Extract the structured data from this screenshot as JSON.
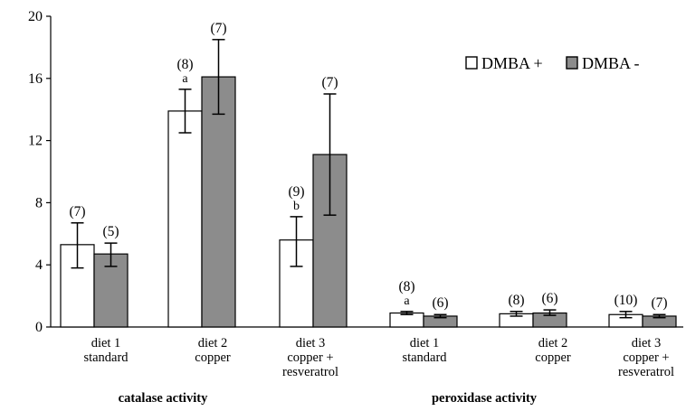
{
  "chart_data": {
    "type": "bar",
    "y_ticks": [
      "0",
      "4",
      "8",
      "12",
      "16",
      "20"
    ],
    "ylim": [
      0,
      20
    ],
    "grid": false,
    "legend_position": "top-right",
    "series": [
      {
        "name": "DMBA +",
        "color": "#ffffff"
      },
      {
        "name": "DMBA -",
        "color": "#8c8c8c"
      }
    ],
    "groups": [
      {
        "label": "catalase activity",
        "categories": [
          {
            "label_lines": [
              "diet 1",
              "standard"
            ],
            "bars": [
              {
                "series": 0,
                "value": 5.3,
                "err_low": 3.8,
                "err_high": 6.7,
                "n": "(7)",
                "letter": ""
              },
              {
                "series": 1,
                "value": 4.7,
                "err_low": 3.9,
                "err_high": 5.4,
                "n": "(5)",
                "letter": ""
              }
            ]
          },
          {
            "label_lines": [
              "diet 2",
              "copper"
            ],
            "bars": [
              {
                "series": 0,
                "value": 13.9,
                "err_low": 12.5,
                "err_high": 15.3,
                "n": "(8)",
                "letter": "a"
              },
              {
                "series": 1,
                "value": 16.1,
                "err_low": 13.7,
                "err_high": 18.5,
                "n": "(7)",
                "letter": ""
              }
            ]
          },
          {
            "label_lines": [
              "diet 3",
              "copper +",
              "resveratrol"
            ],
            "bars": [
              {
                "series": 0,
                "value": 5.6,
                "err_low": 3.9,
                "err_high": 7.1,
                "n": "(9)",
                "letter": "b"
              },
              {
                "series": 1,
                "value": 11.1,
                "err_low": 7.2,
                "err_high": 15.0,
                "n": "(7)",
                "letter": ""
              }
            ]
          }
        ]
      },
      {
        "label": "peroxidase activity",
        "categories": [
          {
            "label_lines": [
              "diet 1",
              "standard"
            ],
            "bars": [
              {
                "series": 0,
                "value": 0.9,
                "err_low": 0.8,
                "err_high": 1.0,
                "n": "(8)",
                "letter": "a"
              },
              {
                "series": 1,
                "value": 0.7,
                "err_low": 0.6,
                "err_high": 0.8,
                "n": "(6)",
                "letter": ""
              }
            ]
          },
          {
            "label_lines": [
              "diet 2",
              "copper"
            ],
            "bars": [
              {
                "series": 0,
                "value": 0.85,
                "err_low": 0.7,
                "err_high": 1.0,
                "n": "(8)",
                "letter": ""
              },
              {
                "series": 1,
                "value": 0.9,
                "err_low": 0.75,
                "err_high": 1.1,
                "n": "(6)",
                "letter": ""
              }
            ]
          },
          {
            "label_lines": [
              "diet 3",
              "copper +",
              "resveratrol"
            ],
            "bars": [
              {
                "series": 0,
                "value": 0.8,
                "err_low": 0.6,
                "err_high": 1.0,
                "n": "(10)",
                "letter": ""
              },
              {
                "series": 1,
                "value": 0.7,
                "err_low": 0.6,
                "err_high": 0.8,
                "n": "(7)",
                "letter": ""
              }
            ]
          }
        ]
      }
    ]
  }
}
